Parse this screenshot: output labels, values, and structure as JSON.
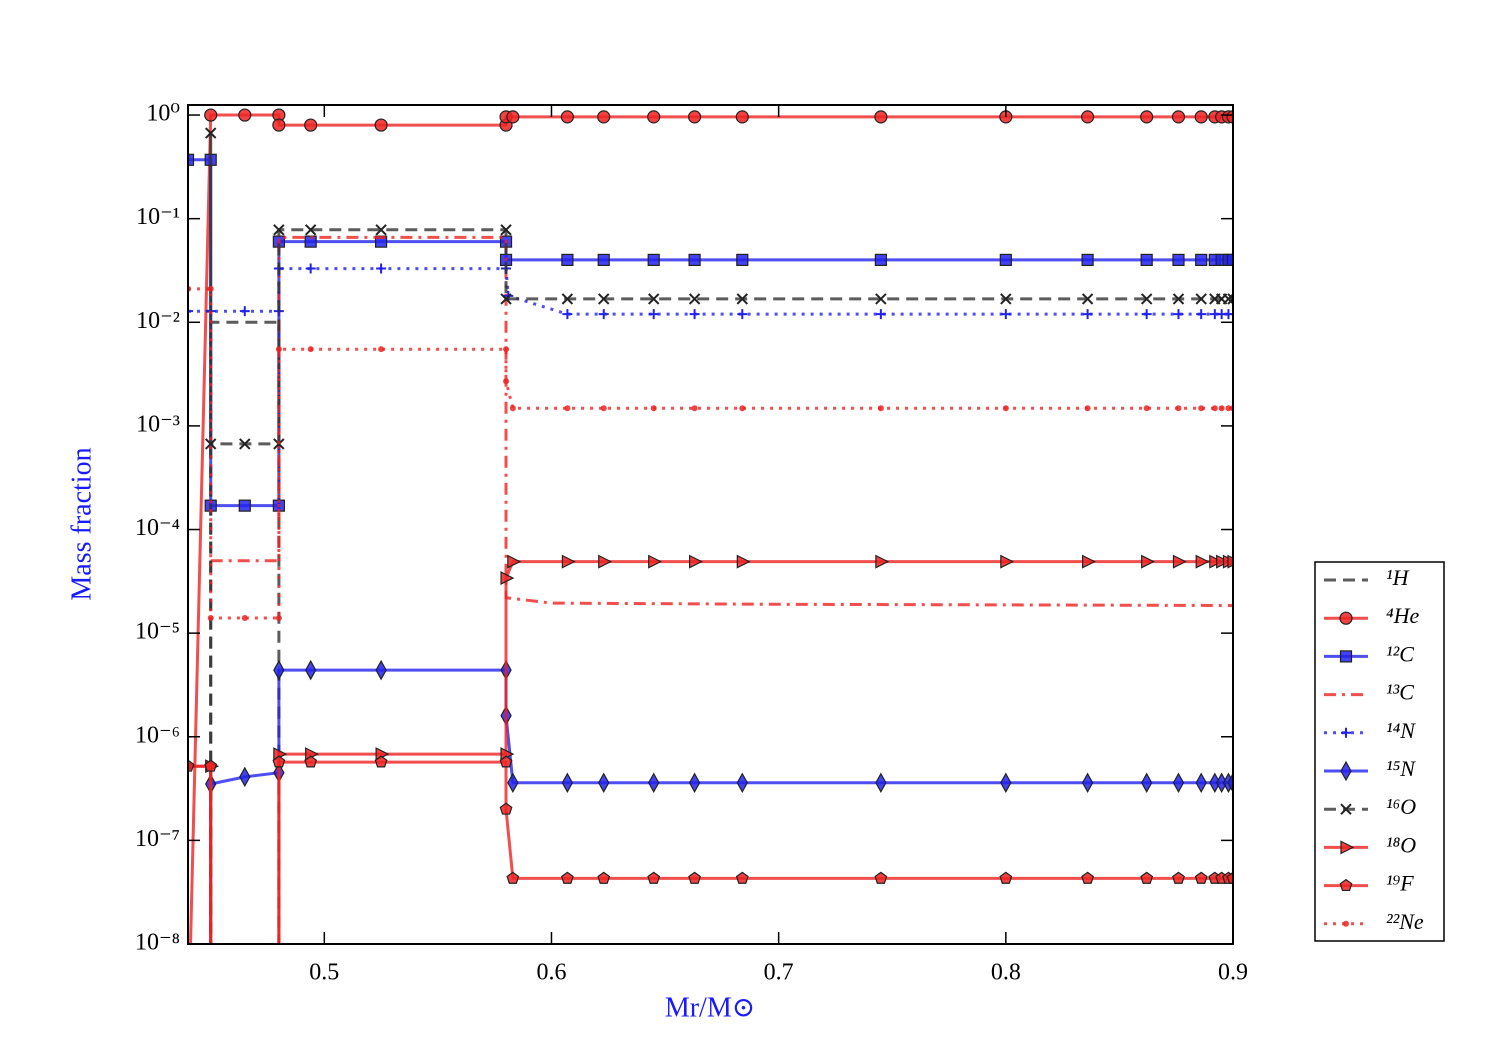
{
  "chart_data": {
    "type": "line",
    "xlabel": "Mr/M⊙",
    "ylabel": "Mass fraction",
    "yscale": "log",
    "xlim": [
      0.44,
      0.9
    ],
    "ylim": [
      1e-08,
      1.25
    ],
    "xticks": [
      0.5,
      0.6,
      0.7,
      0.8,
      0.9
    ],
    "yticks": [
      {
        "value": 1,
        "label": "10⁰"
      },
      {
        "value": 0.1,
        "label": "10⁻¹"
      },
      {
        "value": 0.01,
        "label": "10⁻²"
      },
      {
        "value": 0.001,
        "label": "10⁻³"
      },
      {
        "value": 0.0001,
        "label": "10⁻⁴"
      },
      {
        "value": 1e-05,
        "label": "10⁻⁵"
      },
      {
        "value": 1e-06,
        "label": "10⁻⁶"
      },
      {
        "value": 1e-07,
        "label": "10⁻⁷"
      },
      {
        "value": 1e-08,
        "label": "10⁻⁸"
      }
    ],
    "legend": "right",
    "series": [
      {
        "name": "¹H",
        "color": "#333333",
        "linestyle": "dashed",
        "marker": "none",
        "x": [
          0.45,
          0.45,
          0.48,
          0.48
        ],
        "values": [
          1e-09,
          0.01,
          0.01,
          1e-09
        ]
      },
      {
        "name": "⁴He",
        "color": "#ee2222",
        "linestyle": "solid",
        "marker": "circle",
        "x": [
          0.44,
          0.45,
          0.465,
          0.48,
          0.48,
          0.494,
          0.525,
          0.58,
          0.58,
          0.583,
          0.607,
          0.623,
          0.645,
          0.663,
          0.684,
          0.745,
          0.8,
          0.836,
          0.862,
          0.876,
          0.886,
          0.892,
          0.895,
          0.898,
          0.9
        ],
        "values": [
          1e-09,
          1.0,
          1.0,
          1.0,
          0.8,
          0.8,
          0.8,
          0.8,
          0.96,
          0.96,
          0.96,
          0.96,
          0.96,
          0.96,
          0.96,
          0.96,
          0.96,
          0.96,
          0.96,
          0.96,
          0.96,
          0.96,
          0.96,
          0.96,
          0.96
        ]
      },
      {
        "name": "¹²C",
        "color": "#2222ee",
        "linestyle": "solid",
        "marker": "square",
        "x": [
          0.44,
          0.45,
          0.45,
          0.465,
          0.48,
          0.48,
          0.494,
          0.525,
          0.58,
          0.58,
          0.607,
          0.623,
          0.645,
          0.663,
          0.684,
          0.745,
          0.8,
          0.836,
          0.862,
          0.876,
          0.886,
          0.892,
          0.895,
          0.898,
          0.9
        ],
        "values": [
          0.37,
          0.37,
          0.00017,
          0.00017,
          0.00017,
          0.06,
          0.06,
          0.06,
          0.06,
          0.04,
          0.04,
          0.04,
          0.04,
          0.04,
          0.04,
          0.04,
          0.04,
          0.04,
          0.04,
          0.04,
          0.04,
          0.04,
          0.04,
          0.04,
          0.04
        ]
      },
      {
        "name": "¹³C",
        "color": "#ee2222",
        "linestyle": "dashdot",
        "marker": "none",
        "x": [
          0.45,
          0.48,
          0.48,
          0.58,
          0.58,
          0.6,
          0.7,
          0.9
        ],
        "values": [
          5e-05,
          5e-05,
          0.066,
          0.066,
          2.2e-05,
          1.95e-05,
          1.9e-05,
          1.85e-05
        ]
      },
      {
        "name": "¹⁴N",
        "color": "#2222ee",
        "linestyle": "dotted",
        "marker": "plus",
        "x": [
          0.44,
          0.45,
          0.465,
          0.48,
          0.48,
          0.494,
          0.525,
          0.58,
          0.581,
          0.607,
          0.623,
          0.645,
          0.663,
          0.684,
          0.745,
          0.8,
          0.836,
          0.862,
          0.876,
          0.886,
          0.892,
          0.895,
          0.898,
          0.9
        ],
        "values": [
          0.0128,
          0.0128,
          0.0128,
          0.0128,
          0.033,
          0.033,
          0.033,
          0.033,
          0.018,
          0.012,
          0.012,
          0.012,
          0.012,
          0.012,
          0.012,
          0.012,
          0.012,
          0.012,
          0.012,
          0.012,
          0.012,
          0.012,
          0.012,
          0.012
        ]
      },
      {
        "name": "¹⁵N",
        "color": "#2222ee",
        "linestyle": "solid",
        "marker": "diamond",
        "x": [
          0.45,
          0.45,
          0.465,
          0.48,
          0.48,
          0.494,
          0.525,
          0.58,
          0.58,
          0.583,
          0.607,
          0.623,
          0.645,
          0.663,
          0.684,
          0.745,
          0.8,
          0.836,
          0.862,
          0.876,
          0.886,
          0.892,
          0.895,
          0.898,
          0.9
        ],
        "values": [
          1e-09,
          3.5e-07,
          4.1e-07,
          4.5e-07,
          4.4e-06,
          4.4e-06,
          4.4e-06,
          4.4e-06,
          1.6e-06,
          3.6e-07,
          3.6e-07,
          3.6e-07,
          3.6e-07,
          3.6e-07,
          3.6e-07,
          3.6e-07,
          3.6e-07,
          3.6e-07,
          3.6e-07,
          3.6e-07,
          3.6e-07,
          3.6e-07,
          3.6e-07,
          3.6e-07,
          3.6e-07
        ]
      },
      {
        "name": "¹⁶O",
        "color": "#333333",
        "linestyle": "dashed",
        "marker": "x",
        "x": [
          0.45,
          0.45,
          0.45,
          0.465,
          0.48,
          0.48,
          0.494,
          0.525,
          0.58,
          0.58,
          0.607,
          0.623,
          0.645,
          0.663,
          0.684,
          0.745,
          0.8,
          0.836,
          0.862,
          0.876,
          0.886,
          0.892,
          0.895,
          0.898,
          0.9
        ],
        "values": [
          1e-09,
          0.67,
          0.00067,
          0.00067,
          0.00067,
          0.078,
          0.078,
          0.078,
          0.078,
          0.0168,
          0.0168,
          0.0168,
          0.0168,
          0.0168,
          0.0168,
          0.0168,
          0.0168,
          0.0168,
          0.0168,
          0.0168,
          0.0168,
          0.0168,
          0.0168,
          0.0168,
          0.0168
        ]
      },
      {
        "name": "¹⁸O",
        "color": "#ee2222",
        "linestyle": "solid",
        "marker": "triangle",
        "x": [
          0.44,
          0.45,
          0.45,
          0.48,
          0.48,
          0.494,
          0.525,
          0.58,
          0.58,
          0.583,
          0.607,
          0.623,
          0.645,
          0.663,
          0.684,
          0.745,
          0.8,
          0.836,
          0.862,
          0.876,
          0.886,
          0.892,
          0.895,
          0.898,
          0.9
        ],
        "values": [
          5.2e-07,
          5.2e-07,
          1e-09,
          1e-09,
          6.8e-07,
          6.8e-07,
          6.8e-07,
          6.8e-07,
          3.4e-05,
          4.9e-05,
          4.9e-05,
          4.9e-05,
          4.9e-05,
          4.9e-05,
          4.9e-05,
          4.9e-05,
          4.9e-05,
          4.9e-05,
          4.9e-05,
          4.9e-05,
          4.9e-05,
          4.9e-05,
          4.9e-05,
          4.9e-05,
          4.9e-05
        ]
      },
      {
        "name": "¹⁹F",
        "color": "#ee2222",
        "linestyle": "solid",
        "marker": "pentagon",
        "x": [
          0.44,
          0.45,
          0.45,
          0.48,
          0.48,
          0.494,
          0.525,
          0.58,
          0.58,
          0.583,
          0.607,
          0.623,
          0.645,
          0.663,
          0.684,
          0.745,
          0.8,
          0.836,
          0.862,
          0.876,
          0.886,
          0.892,
          0.895,
          0.898,
          0.9
        ],
        "values": [
          5.2e-07,
          5.2e-07,
          1e-09,
          1e-09,
          5.7e-07,
          5.7e-07,
          5.7e-07,
          5.7e-07,
          2e-07,
          4.3e-08,
          4.3e-08,
          4.3e-08,
          4.3e-08,
          4.3e-08,
          4.3e-08,
          4.3e-08,
          4.3e-08,
          4.3e-08,
          4.3e-08,
          4.3e-08,
          4.3e-08,
          4.3e-08,
          4.3e-08,
          4.3e-08,
          4.3e-08
        ]
      },
      {
        "name": "²²Ne",
        "color": "#ee2222",
        "linestyle": "dotted",
        "marker": "dot",
        "x": [
          0.44,
          0.45,
          0.45,
          0.465,
          0.48,
          0.48,
          0.494,
          0.525,
          0.58,
          0.58,
          0.583,
          0.607,
          0.623,
          0.645,
          0.663,
          0.684,
          0.745,
          0.8,
          0.836,
          0.862,
          0.876,
          0.886,
          0.892,
          0.895,
          0.898,
          0.9
        ],
        "values": [
          0.021,
          0.021,
          1.4e-05,
          1.4e-05,
          1.4e-05,
          0.0055,
          0.0055,
          0.0055,
          0.0055,
          0.0027,
          0.00148,
          0.00148,
          0.00148,
          0.00148,
          0.00148,
          0.00148,
          0.00148,
          0.00148,
          0.00148,
          0.00148,
          0.00148,
          0.00148,
          0.00148,
          0.00148,
          0.00148,
          0.00148
        ]
      }
    ]
  }
}
